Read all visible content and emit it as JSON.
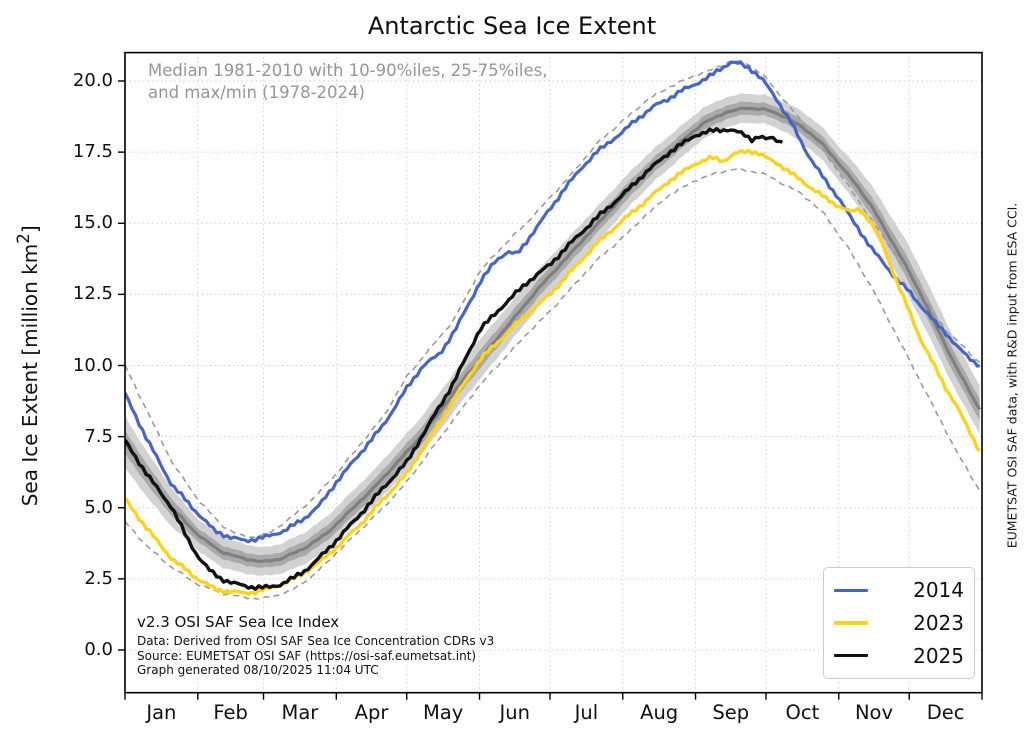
{
  "title": "Antarctic Sea Ice Extent",
  "annotation": {
    "line1": "Median 1981-2010 with 10-90%iles, 25-75%iles,",
    "line2": "and max/min (1978-2024)"
  },
  "labels": {
    "y_axis_prefix": "Sea Ice Extent [million km",
    "y_axis_sup": "2",
    "y_axis_suffix": "]",
    "side_note": "EUMETSAT OSI SAF data, with R&D input from ESA CCI."
  },
  "footnote": {
    "line1": "v2.3 OSI SAF Sea Ice Index",
    "line2": "Data: Derived from OSI SAF Sea Ice Concentration CDRs v3",
    "line3": "Source: EUMETSAT OSI SAF (https://osi-saf.eumetsat.int)",
    "line4": "Graph generated 08/10/2025 11:04 UTC"
  },
  "legend": {
    "items": [
      {
        "label": "2014",
        "color": "#4565c8"
      },
      {
        "label": "2023",
        "color": "#ffd21e"
      },
      {
        "label": "2025",
        "color": "#111111"
      }
    ]
  },
  "colors": {
    "blue_2014": "#4565c8",
    "yellow_2023": "#ffd21e",
    "black_2025": "#111111",
    "median_gray": "#7f7f7f",
    "band_10_90": "#d2d2d2",
    "band_25_75": "#a9a9a9",
    "dashed_maxmin": "#9a9a9a",
    "grid": "#cfcfcf",
    "annotation_text": "#969696"
  },
  "chart_data": {
    "type": "line",
    "title": "Antarctic Sea Ice Extent",
    "xlabel": "",
    "ylabel": "Sea Ice Extent [million km2]",
    "xlim_days": [
      0,
      365
    ],
    "ylim": [
      -1.5,
      21.0
    ],
    "grid": true,
    "legend_position": "lower right",
    "x_tick_month_labels": [
      "Jan",
      "Feb",
      "Mar",
      "Apr",
      "May",
      "Jun",
      "Jul",
      "Aug",
      "Sep",
      "Oct",
      "Nov",
      "Dec"
    ],
    "month_boundaries_day": [
      0,
      31,
      59,
      90,
      120,
      151,
      181,
      212,
      243,
      273,
      304,
      334,
      365
    ],
    "y_ticks": [
      "0.0",
      "2.5",
      "5.0",
      "7.5",
      "10.0",
      "12.5",
      "15.0",
      "17.5",
      "20.0"
    ],
    "y_tick_values": [
      0,
      2.5,
      5,
      7.5,
      10,
      12.5,
      15,
      17.5,
      20
    ],
    "series": [
      {
        "name": "2014",
        "style": "solid",
        "color_key": "blue_2014",
        "days": [
          0,
          10,
          20,
          31,
          38,
          45,
          51,
          56,
          61,
          68,
          76,
          83,
          90,
          100,
          110,
          120,
          127,
          134,
          141,
          151,
          158,
          163,
          167,
          174,
          181,
          188,
          195,
          201,
          207,
          212,
          217,
          222,
          227,
          232,
          238,
          243,
          248,
          253,
          258,
          262,
          266,
          269,
          272,
          275,
          278,
          281,
          284,
          287,
          291,
          295,
          299,
          304,
          309,
          314,
          319,
          324,
          329,
          334,
          339,
          344,
          349,
          354,
          359,
          364
        ],
        "values": [
          9.0,
          7.3,
          5.8,
          4.8,
          4.2,
          3.95,
          3.85,
          3.9,
          4.0,
          4.2,
          4.6,
          5.1,
          5.9,
          6.9,
          7.9,
          9.2,
          10.0,
          10.4,
          11.3,
          12.9,
          13.7,
          14.0,
          13.9,
          14.7,
          15.5,
          16.3,
          17.0,
          17.5,
          17.9,
          18.2,
          18.6,
          18.9,
          19.2,
          19.4,
          19.7,
          19.9,
          20.1,
          20.4,
          20.65,
          20.6,
          20.45,
          20.25,
          20.0,
          19.65,
          19.3,
          18.9,
          18.5,
          18.0,
          17.4,
          16.9,
          16.4,
          15.9,
          15.2,
          14.6,
          14.0,
          13.5,
          13.0,
          12.6,
          12.1,
          11.6,
          11.2,
          10.7,
          10.3,
          10.0
        ]
      },
      {
        "name": "2023",
        "style": "solid",
        "color_key": "yellow_2023",
        "days": [
          0,
          10,
          20,
          31,
          38,
          45,
          51,
          56,
          61,
          68,
          76,
          83,
          90,
          100,
          110,
          120,
          130,
          140,
          151,
          161,
          171,
          181,
          191,
          201,
          212,
          222,
          232,
          243,
          250,
          255,
          260,
          266,
          270,
          273,
          278,
          283,
          288,
          293,
          298,
          304,
          309,
          313,
          318,
          323,
          328,
          334,
          339,
          344,
          349,
          354,
          359,
          364
        ],
        "values": [
          5.3,
          4.2,
          3.2,
          2.5,
          2.15,
          2.05,
          2.0,
          2.05,
          2.15,
          2.35,
          2.7,
          3.1,
          3.6,
          4.4,
          5.3,
          6.2,
          7.5,
          8.8,
          10.2,
          11.0,
          11.8,
          12.5,
          13.4,
          14.3,
          15.1,
          15.8,
          16.5,
          17.1,
          17.3,
          17.2,
          17.45,
          17.55,
          17.45,
          17.3,
          17.1,
          16.8,
          16.5,
          16.2,
          15.9,
          15.6,
          15.4,
          15.5,
          15.0,
          14.2,
          13.1,
          11.9,
          10.9,
          10.1,
          9.3,
          8.6,
          7.8,
          7.0
        ]
      },
      {
        "name": "2025",
        "style": "solid",
        "color_key": "black_2025",
        "days": [
          0,
          10,
          20,
          26,
          31,
          36,
          41,
          46,
          51,
          56,
          61,
          66,
          71,
          76,
          81,
          86,
          90,
          100,
          110,
          120,
          130,
          140,
          151,
          161,
          171,
          181,
          191,
          201,
          212,
          222,
          232,
          243,
          250,
          257,
          261,
          264,
          267,
          270,
          273,
          276,
          278,
          280
        ],
        "values": [
          7.35,
          6.1,
          5.0,
          4.0,
          3.3,
          2.8,
          2.5,
          2.35,
          2.25,
          2.2,
          2.2,
          2.3,
          2.5,
          2.75,
          3.1,
          3.5,
          3.85,
          4.75,
          5.7,
          6.6,
          8.0,
          9.4,
          11.25,
          12.1,
          12.9,
          13.55,
          14.4,
          15.2,
          16.0,
          16.8,
          17.5,
          18.1,
          18.25,
          18.3,
          18.2,
          18.1,
          17.95,
          18.05,
          17.95,
          18.0,
          17.9,
          17.85
        ]
      },
      {
        "name": "median 1981-2010",
        "style": "solid-thick",
        "color_key": "median_gray",
        "days": [
          0,
          10,
          20,
          31,
          41,
          51,
          59,
          66,
          76,
          86,
          96,
          106,
          116,
          126,
          136,
          146,
          156,
          166,
          176,
          186,
          196,
          206,
          216,
          226,
          236,
          246,
          256,
          264,
          273,
          281,
          289,
          297,
          304,
          311,
          318,
          325,
          332,
          339,
          346,
          353,
          359,
          364
        ],
        "values": [
          7.3,
          6.1,
          5.0,
          4.05,
          3.45,
          3.2,
          3.1,
          3.2,
          3.55,
          4.1,
          4.9,
          5.7,
          6.6,
          7.5,
          8.6,
          9.7,
          10.7,
          11.7,
          12.7,
          13.6,
          14.5,
          15.4,
          16.3,
          17.1,
          17.8,
          18.5,
          18.9,
          19.05,
          19.0,
          18.75,
          18.35,
          17.8,
          17.1,
          16.4,
          15.6,
          14.6,
          13.6,
          12.5,
          11.3,
          10.1,
          9.2,
          8.45
        ]
      },
      {
        "name": "max 1978-2024",
        "style": "dashed",
        "color_key": "dashed_maxmin",
        "days": [
          0,
          10,
          20,
          31,
          41,
          48,
          55,
          61,
          70,
          80,
          90,
          100,
          110,
          120,
          130,
          140,
          151,
          161,
          171,
          181,
          191,
          201,
          212,
          222,
          232,
          243,
          250,
          258,
          264,
          269,
          273,
          278,
          283,
          288,
          293,
          298,
          304,
          309,
          314,
          319,
          324,
          329,
          334,
          339,
          344,
          349,
          354,
          359,
          364
        ],
        "values": [
          10.0,
          8.3,
          6.6,
          5.3,
          4.4,
          4.05,
          3.95,
          4.1,
          4.6,
          5.3,
          6.2,
          7.2,
          8.2,
          9.6,
          10.6,
          11.6,
          13.3,
          14.2,
          15.0,
          15.9,
          16.8,
          17.8,
          18.6,
          19.3,
          19.8,
          20.2,
          20.4,
          20.7,
          20.65,
          20.4,
          20.1,
          19.6,
          19.1,
          18.6,
          18.1,
          17.5,
          16.8,
          16.2,
          15.6,
          15.0,
          14.4,
          13.8,
          13.2,
          12.5,
          11.9,
          11.3,
          10.9,
          10.5,
          10.1
        ]
      },
      {
        "name": "min 1978-2024",
        "style": "dashed",
        "color_key": "dashed_maxmin",
        "days": [
          0,
          10,
          20,
          31,
          41,
          51,
          58,
          64,
          71,
          80,
          90,
          100,
          110,
          120,
          130,
          140,
          151,
          161,
          171,
          181,
          191,
          201,
          212,
          222,
          232,
          243,
          253,
          260,
          266,
          273,
          280,
          287,
          293,
          298,
          304,
          309,
          314,
          319,
          324,
          329,
          334,
          339,
          344,
          349,
          354,
          359,
          364
        ],
        "values": [
          4.5,
          3.6,
          2.9,
          2.3,
          2.0,
          1.85,
          1.8,
          1.9,
          2.1,
          2.6,
          3.4,
          4.2,
          5.0,
          5.9,
          7.0,
          8.1,
          9.3,
          10.2,
          11.1,
          11.9,
          12.8,
          13.7,
          14.5,
          15.3,
          16.0,
          16.5,
          16.8,
          16.9,
          16.85,
          16.7,
          16.4,
          16.1,
          15.7,
          15.3,
          14.6,
          14.0,
          13.3,
          12.6,
          11.8,
          11.0,
          10.2,
          9.4,
          8.6,
          7.8,
          7.0,
          6.3,
          5.6
        ]
      }
    ],
    "bands": {
      "description": "percentile bands around median 1981-2010",
      "width_days": [
        0,
        31,
        59,
        90,
        120,
        151,
        181,
        212,
        243,
        273,
        304,
        334,
        364
      ],
      "half_width_10_90": [
        0.9,
        0.55,
        0.5,
        0.6,
        0.65,
        0.7,
        0.65,
        0.6,
        0.55,
        0.5,
        0.6,
        0.9,
        0.85
      ],
      "half_width_25_75": [
        0.4,
        0.24,
        0.22,
        0.27,
        0.3,
        0.32,
        0.3,
        0.28,
        0.25,
        0.22,
        0.27,
        0.4,
        0.38
      ]
    }
  }
}
